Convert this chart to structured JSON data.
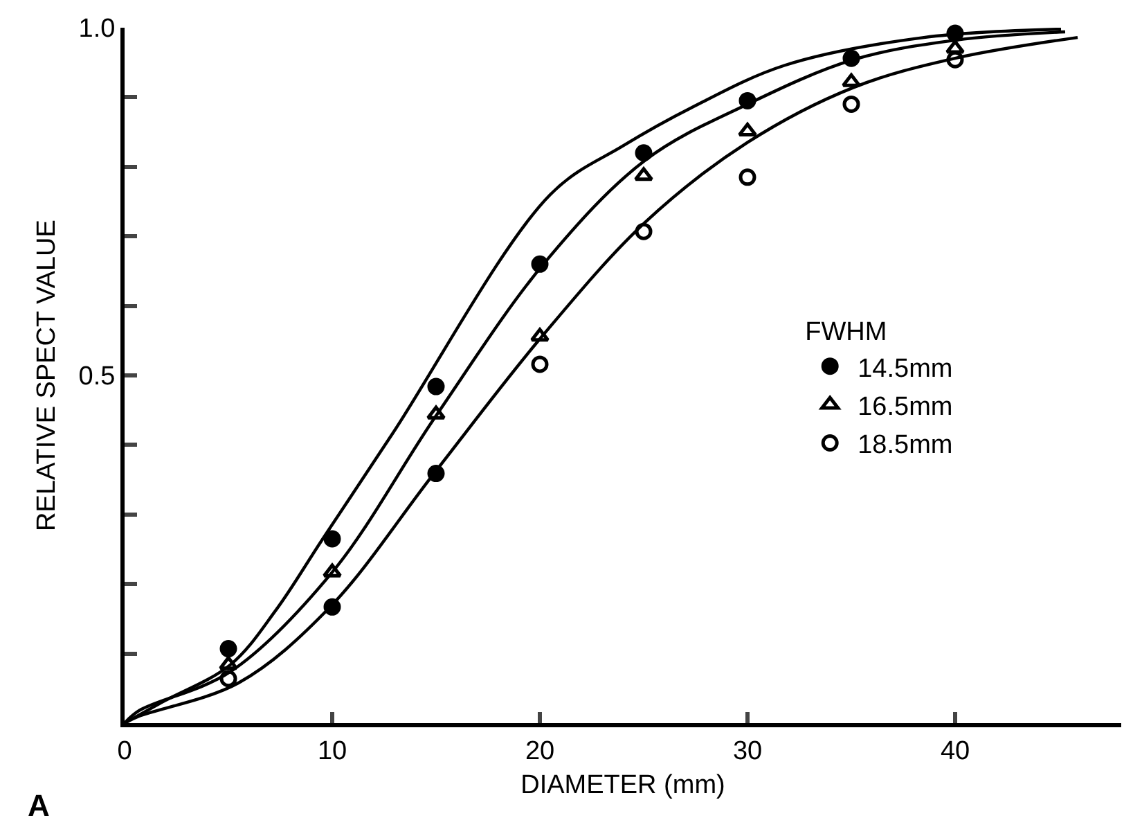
{
  "chart_data": {
    "type": "scatter",
    "xlabel": "DIAMETER (mm)",
    "ylabel": "RELATIVE SPECT VALUE",
    "legend_title": "FWHM",
    "legend": "right",
    "annotations": [
      "A"
    ],
    "xlim": [
      0,
      48
    ],
    "ylim": [
      0,
      1.0
    ],
    "xticks": [
      0,
      10,
      20,
      30,
      40
    ],
    "yticks": [
      {
        "value": 0.1,
        "label": null
      },
      {
        "value": 0.2,
        "label": null
      },
      {
        "value": 0.3,
        "label": null
      },
      {
        "value": 0.4,
        "label": null
      },
      0.5,
      {
        "value": 0.6,
        "label": null
      },
      {
        "value": 0.7,
        "label": null
      },
      {
        "value": 0.8,
        "label": null
      },
      {
        "value": 0.9,
        "label": null
      },
      {
        "value": 1.0,
        "label": "1.0"
      }
    ],
    "series": [
      {
        "type": "line",
        "color": "#000000",
        "marker": "none",
        "x": [
          0,
          1.8,
          5.1,
          7.3,
          9.5,
          12.9,
          20.5,
          24,
          27.3,
          31.8,
          38.5,
          45.1
        ],
        "values": [
          0,
          0.03,
          0.084,
          0.163,
          0.263,
          0.416,
          0.76,
          0.83,
          0.885,
          0.946,
          0.986,
          0.998
        ]
      },
      {
        "type": "line",
        "color": "#000000",
        "marker": "none",
        "x": [
          0,
          0.7,
          5.1,
          10,
          15,
          20.2,
          25.1,
          30,
          35.1,
          40,
          45.3
        ],
        "values": [
          0,
          0.018,
          0.074,
          0.217,
          0.442,
          0.661,
          0.81,
          0.89,
          0.954,
          0.982,
          0.994
        ]
      },
      {
        "type": "line",
        "color": "#000000",
        "marker": "none",
        "x": [
          0,
          0.7,
          5.5,
          9.9,
          14.9,
          20.1,
          25.1,
          30,
          35.1,
          40,
          45.9
        ],
        "values": [
          0,
          0.01,
          0.058,
          0.167,
          0.359,
          0.556,
          0.721,
          0.835,
          0.914,
          0.956,
          0.986
        ]
      },
      {
        "name": "14.5mm",
        "color": "#000000",
        "marker": "circle",
        "x": [
          5,
          10,
          15,
          20,
          25,
          30,
          35,
          40
        ],
        "values": [
          0.107,
          0.265,
          0.484,
          0.66,
          0.82,
          0.895,
          0.956,
          0.992
        ]
      },
      {
        "name": "16.5mm",
        "color": "#000000",
        "marker": "triangle",
        "x": [
          5,
          10,
          15,
          20,
          25,
          30,
          35,
          40
        ],
        "values": [
          0.084,
          0.217,
          0.444,
          0.556,
          0.787,
          0.851,
          0.922,
          0.97
        ]
      },
      {
        "name": "18.5mm",
        "color": "#000000",
        "marker": "circle-open",
        "x": [
          5,
          20,
          25,
          30,
          35,
          40
        ],
        "values": [
          0.064,
          0.516,
          0.707,
          0.785,
          0.89,
          0.954
        ]
      },
      {
        "color": "#000000",
        "marker": "circle",
        "x": [
          10,
          15
        ],
        "values": [
          0.167,
          0.359
        ]
      }
    ]
  }
}
